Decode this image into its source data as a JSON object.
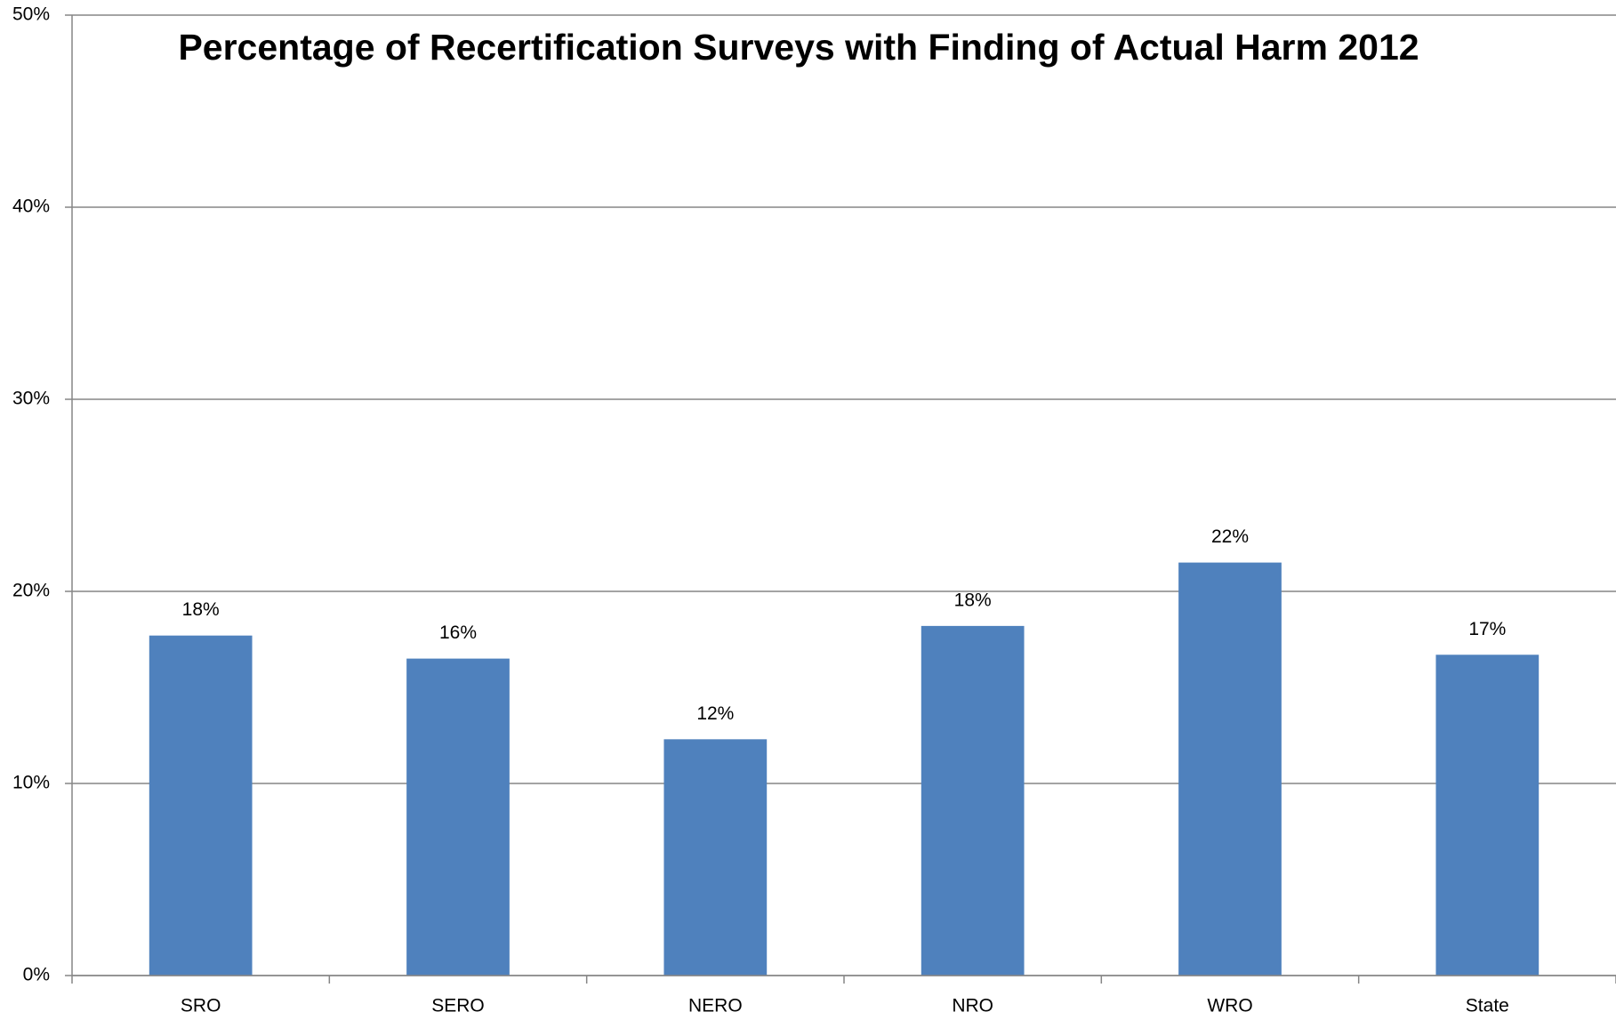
{
  "chart_data": {
    "type": "bar",
    "title": "Percentage of Recertification Surveys with Finding of Actual Harm 2012",
    "categories": [
      "SRO",
      "SERO",
      "NERO",
      "NRO",
      "WRO",
      "State"
    ],
    "values": [
      17.7,
      16.5,
      12.3,
      18.2,
      21.5,
      16.7
    ],
    "value_labels": [
      "18%",
      "16%",
      "12%",
      "18%",
      "22%",
      "17%"
    ],
    "color": "#4f81bd",
    "ylim": [
      0,
      50
    ],
    "yticks": [
      {
        "value": 0,
        "label": "0%"
      },
      {
        "value": 10,
        "label": "10%"
      },
      {
        "value": 20,
        "label": "20%"
      },
      {
        "value": 30,
        "label": "30%"
      },
      {
        "value": 40,
        "label": "40%"
      },
      {
        "value": 50,
        "label": "50%"
      }
    ],
    "grid": true
  }
}
